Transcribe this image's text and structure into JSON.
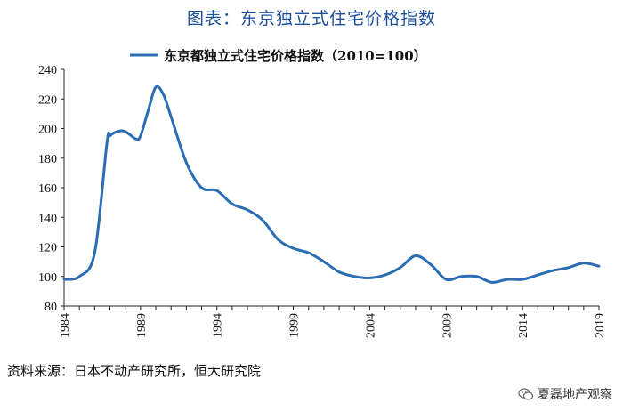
{
  "figure_title": "图表：东京独立式住宅价格指数",
  "source_note": "资料来源：日本不动产研究所，恒大研究院",
  "watermark": {
    "icon": "wechat-icon",
    "text": "夏磊地产观察"
  },
  "chart_data": {
    "type": "line",
    "title": "",
    "xlabel": "",
    "ylabel": "",
    "ylim": [
      80,
      240
    ],
    "yticks": [
      80,
      100,
      120,
      140,
      160,
      180,
      200,
      220,
      240
    ],
    "xlim": [
      1984,
      2019
    ],
    "xticks": [
      "1984",
      "1989",
      "1994",
      "1999",
      "2004",
      "2009",
      "2014",
      "2019"
    ],
    "grid": false,
    "legend_position": "top-center",
    "series": [
      {
        "name": "东京都独立式住宅价格指数（2010=100）",
        "color": "#2a6db5",
        "points": [
          [
            1984.0,
            98
          ],
          [
            1985.0,
            100
          ],
          [
            1986.0,
            116
          ],
          [
            1986.8,
            190
          ],
          [
            1987.0,
            195
          ],
          [
            1987.5,
            198
          ],
          [
            1988.0,
            198
          ],
          [
            1988.7,
            193
          ],
          [
            1989.0,
            195
          ],
          [
            1989.5,
            212
          ],
          [
            1990.0,
            228
          ],
          [
            1990.5,
            223
          ],
          [
            1991.0,
            208
          ],
          [
            1992.0,
            177
          ],
          [
            1993.0,
            160
          ],
          [
            1994.0,
            158
          ],
          [
            1995.0,
            149
          ],
          [
            1996.0,
            145
          ],
          [
            1997.0,
            138
          ],
          [
            1998.0,
            125
          ],
          [
            1999.0,
            119
          ],
          [
            2000.0,
            116
          ],
          [
            2001.0,
            110
          ],
          [
            2002.0,
            103
          ],
          [
            2003.0,
            100
          ],
          [
            2004.0,
            99
          ],
          [
            2005.0,
            101
          ],
          [
            2006.0,
            106
          ],
          [
            2007.0,
            114
          ],
          [
            2008.0,
            108
          ],
          [
            2009.0,
            98
          ],
          [
            2010.0,
            100
          ],
          [
            2011.0,
            100
          ],
          [
            2012.0,
            96
          ],
          [
            2013.0,
            98
          ],
          [
            2014.0,
            98
          ],
          [
            2015.0,
            101
          ],
          [
            2016.0,
            104
          ],
          [
            2017.0,
            106
          ],
          [
            2018.0,
            109
          ],
          [
            2019.0,
            107
          ]
        ]
      }
    ]
  }
}
